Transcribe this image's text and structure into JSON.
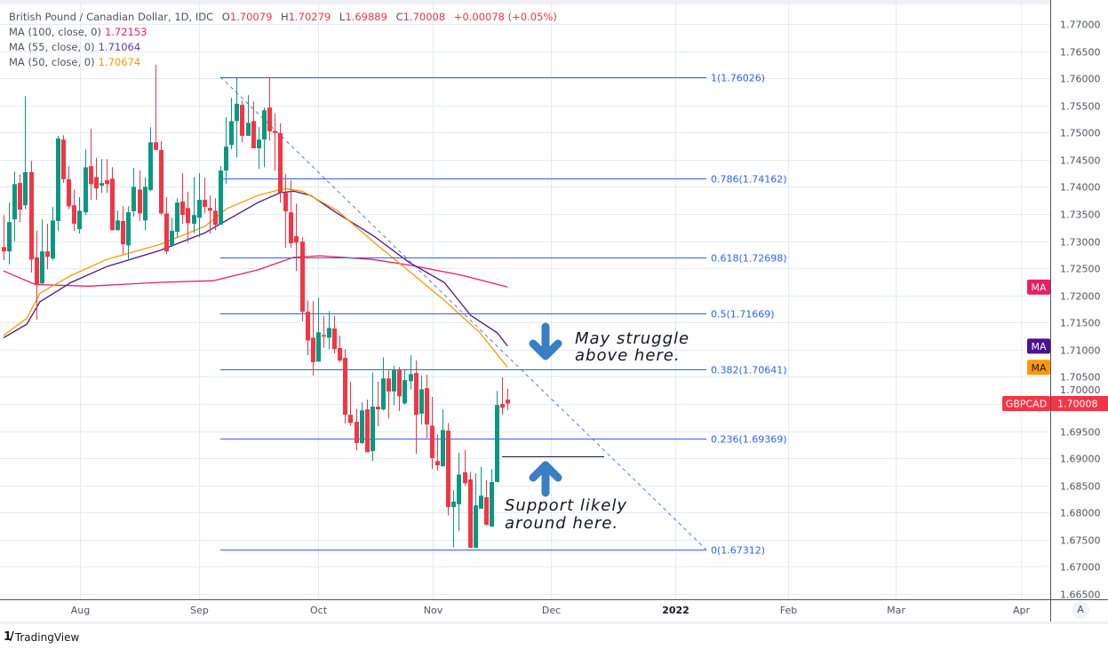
{
  "legend": {
    "symbol": "British Pound / Canadian Dollar, 1D, IDC",
    "o_label": "O",
    "o": "1.70079",
    "h_label": "H",
    "h": "1.70279",
    "l_label": "L",
    "l": "1.69889",
    "c_label": "C",
    "c": "1.70008",
    "change": "+0.00078 (+0.05%)",
    "ma100_label": "MA (100, close, 0)",
    "ma100_value": "1.72153",
    "ma55_label": "MA (55, close, 0)",
    "ma55_value": "1.71064",
    "ma50_label": "MA (50, close, 0)",
    "ma50_value": "1.70674"
  },
  "colors": {
    "up": "#089981",
    "down": "#f23645",
    "ma100": "#e91e63",
    "ma55": "#4a148c",
    "ma50": "#ff9800",
    "fib": "#2962ff",
    "arrow": "#3a7ec6",
    "grid": "#e3ebf3"
  },
  "badges": {
    "ma": "MA",
    "symbol": "GBPCAD",
    "last_price": "1.70008"
  },
  "annotations": {
    "resistance": [
      "May struggle",
      "above here."
    ],
    "support": [
      "Support likely",
      "around here."
    ],
    "support_level": 1.6903
  },
  "footer": {
    "brand": "TradingView",
    "auto_button": "A"
  },
  "chart_data": {
    "type": "candlestick",
    "title": "British Pound / Canadian Dollar, 1D, IDC",
    "ylim": [
      1.665,
      1.77
    ],
    "y_tick_labels": [
      "1.77000",
      "1.76500",
      "1.76000",
      "1.75500",
      "1.75000",
      "1.74500",
      "1.74000",
      "1.73500",
      "1.73000",
      "1.72500",
      "1.72000",
      "1.71500",
      "1.71000",
      "1.70500",
      "1.70000",
      "1.69500",
      "1.69000",
      "1.68500",
      "1.68000",
      "1.67500",
      "1.67000",
      "1.66500"
    ],
    "x_tick_labels": [
      "Aug",
      "Sep",
      "Oct",
      "Nov",
      "Dec",
      "2022",
      "Feb",
      "Mar",
      "Apr"
    ],
    "grid": true,
    "candles_ohlc": [
      [
        1.7289,
        1.7348,
        1.7265,
        1.7281
      ],
      [
        1.7281,
        1.7371,
        1.7257,
        1.7335
      ],
      [
        1.734,
        1.7428,
        1.7299,
        1.7405
      ],
      [
        1.7407,
        1.7423,
        1.7335,
        1.7358
      ],
      [
        1.7366,
        1.7567,
        1.7359,
        1.7427
      ],
      [
        1.7427,
        1.7448,
        1.7242,
        1.7266
      ],
      [
        1.727,
        1.7319,
        1.7155,
        1.7219
      ],
      [
        1.7222,
        1.734,
        1.722,
        1.7281
      ],
      [
        1.7281,
        1.7332,
        1.7248,
        1.7271
      ],
      [
        1.7268,
        1.7363,
        1.7265,
        1.7338
      ],
      [
        1.7337,
        1.7494,
        1.7319,
        1.7489
      ],
      [
        1.7487,
        1.7495,
        1.7407,
        1.7414
      ],
      [
        1.7414,
        1.7438,
        1.7359,
        1.7364
      ],
      [
        1.7366,
        1.7395,
        1.7319,
        1.7332
      ],
      [
        1.7322,
        1.7381,
        1.7314,
        1.7356
      ],
      [
        1.7353,
        1.7469,
        1.7348,
        1.7436
      ],
      [
        1.7438,
        1.7507,
        1.7376,
        1.7405
      ],
      [
        1.7418,
        1.7453,
        1.7376,
        1.7397
      ],
      [
        1.7402,
        1.7451,
        1.7389,
        1.7407
      ],
      [
        1.7412,
        1.7451,
        1.7389,
        1.7405
      ],
      [
        1.7415,
        1.7436,
        1.732,
        1.732
      ],
      [
        1.732,
        1.7356,
        1.732,
        1.7338
      ],
      [
        1.7337,
        1.7364,
        1.7276,
        1.7294
      ],
      [
        1.7292,
        1.7364,
        1.7265,
        1.7353
      ],
      [
        1.7355,
        1.7435,
        1.7345,
        1.74
      ],
      [
        1.7395,
        1.743,
        1.7337,
        1.7351
      ],
      [
        1.7338,
        1.7417,
        1.732,
        1.74
      ],
      [
        1.7394,
        1.751,
        1.7392,
        1.7482
      ],
      [
        1.7482,
        1.7625,
        1.7468,
        1.7468
      ],
      [
        1.7468,
        1.7484,
        1.7348,
        1.7351
      ],
      [
        1.7351,
        1.7381,
        1.7276,
        1.7281
      ],
      [
        1.7292,
        1.7343,
        1.7289,
        1.7319
      ],
      [
        1.7317,
        1.7379,
        1.7307,
        1.7371
      ],
      [
        1.7373,
        1.7425,
        1.7332,
        1.7348
      ],
      [
        1.7361,
        1.7391,
        1.7297,
        1.7333
      ],
      [
        1.7332,
        1.7418,
        1.7314,
        1.7348
      ],
      [
        1.7343,
        1.7425,
        1.7307,
        1.7376
      ],
      [
        1.7376,
        1.7417,
        1.7351,
        1.7363
      ],
      [
        1.7361,
        1.7384,
        1.7314,
        1.7356
      ],
      [
        1.7356,
        1.7379,
        1.732,
        1.733
      ],
      [
        1.733,
        1.7438,
        1.733,
        1.743
      ],
      [
        1.743,
        1.7528,
        1.7405,
        1.7474
      ],
      [
        1.7477,
        1.7564,
        1.7469,
        1.7521
      ],
      [
        1.7521,
        1.7602,
        1.7454,
        1.7553
      ],
      [
        1.7551,
        1.7559,
        1.7482,
        1.7494
      ],
      [
        1.7494,
        1.7569,
        1.7494,
        1.7518
      ],
      [
        1.7521,
        1.7557,
        1.7471,
        1.7471
      ],
      [
        1.7471,
        1.751,
        1.7433,
        1.7487
      ],
      [
        1.7487,
        1.7546,
        1.7436,
        1.7541
      ],
      [
        1.7546,
        1.7602,
        1.7485,
        1.7502
      ],
      [
        1.7503,
        1.7535,
        1.743,
        1.7499
      ],
      [
        1.7499,
        1.7517,
        1.7371,
        1.7389
      ],
      [
        1.7389,
        1.7423,
        1.7288,
        1.7355
      ],
      [
        1.7353,
        1.7412,
        1.7288,
        1.7296
      ],
      [
        1.7309,
        1.7369,
        1.7245,
        1.7297
      ],
      [
        1.7299,
        1.7307,
        1.7152,
        1.717
      ],
      [
        1.717,
        1.7191,
        1.709,
        1.7117
      ],
      [
        1.7122,
        1.7189,
        1.7052,
        1.7077
      ],
      [
        1.7078,
        1.7196,
        1.7078,
        1.7132
      ],
      [
        1.7127,
        1.7162,
        1.7103,
        1.7124
      ],
      [
        1.7122,
        1.7171,
        1.7101,
        1.714
      ],
      [
        1.7139,
        1.7162,
        1.7093,
        1.7101
      ],
      [
        1.7103,
        1.7126,
        1.7077,
        1.708
      ],
      [
        1.7085,
        1.7101,
        1.6964,
        1.698
      ],
      [
        1.698,
        1.7041,
        1.696,
        1.6965
      ],
      [
        1.6967,
        1.6991,
        1.6915,
        1.6928
      ],
      [
        1.6928,
        1.7003,
        1.6926,
        1.6988
      ],
      [
        1.699,
        1.7008,
        1.6911,
        1.6911
      ],
      [
        1.6913,
        1.7058,
        1.6895,
        1.6995
      ],
      [
        1.6995,
        1.7041,
        1.6959,
        1.699
      ],
      [
        1.699,
        1.7086,
        1.6988,
        1.7047
      ],
      [
        1.7047,
        1.7062,
        1.6973,
        1.7023
      ],
      [
        1.7023,
        1.707,
        1.6998,
        1.7062
      ],
      [
        1.7062,
        1.7068,
        1.6987,
        1.7014
      ],
      [
        1.7001,
        1.7063,
        1.6999,
        1.7044
      ],
      [
        1.7042,
        1.709,
        1.7027,
        1.7055
      ],
      [
        1.7057,
        1.708,
        1.6908,
        1.698
      ],
      [
        1.6982,
        1.7052,
        1.6962,
        1.7027
      ],
      [
        1.7029,
        1.7054,
        1.6937,
        1.6962
      ],
      [
        1.696,
        1.7013,
        1.688,
        1.69
      ],
      [
        1.6895,
        1.6944,
        1.6877,
        1.6887
      ],
      [
        1.6885,
        1.699,
        1.6885,
        1.6952
      ],
      [
        1.6951,
        1.6965,
        1.6795,
        1.681
      ],
      [
        1.681,
        1.6841,
        1.6736,
        1.682
      ],
      [
        1.6815,
        1.691,
        1.6766,
        1.687
      ],
      [
        1.6874,
        1.6915,
        1.6849,
        1.6854
      ],
      [
        1.6861,
        1.6875,
        1.6735,
        1.6735
      ],
      [
        1.6735,
        1.6872,
        1.6735,
        1.6813
      ],
      [
        1.6807,
        1.6884,
        1.6807,
        1.6831
      ],
      [
        1.6828,
        1.6859,
        1.6777,
        1.6777
      ],
      [
        1.6774,
        1.688,
        1.6774,
        1.6856
      ],
      [
        1.6856,
        1.7024,
        1.6856,
        1.6998
      ],
      [
        1.7,
        1.7049,
        1.698,
        1.6993
      ],
      [
        1.70079,
        1.70279,
        1.69889,
        1.70008
      ]
    ],
    "moving_averages": [
      {
        "name": "MA (100, close, 0)",
        "points_bar_value": [
          [
            0,
            1.7245
          ],
          [
            5.9,
            1.722
          ],
          [
            15.7,
            1.7217
          ],
          [
            28.9,
            1.7224
          ],
          [
            38.7,
            1.7227
          ],
          [
            46.9,
            1.7247
          ],
          [
            53.5,
            1.727
          ],
          [
            58.4,
            1.7273
          ],
          [
            68.2,
            1.7266
          ],
          [
            74.8,
            1.7256
          ],
          [
            84.6,
            1.7237
          ],
          [
            93,
            1.72153
          ]
        ]
      },
      {
        "name": "MA (55, close, 0)",
        "points_bar_value": [
          [
            0,
            1.7122
          ],
          [
            4.3,
            1.7147
          ],
          [
            6.7,
            1.7188
          ],
          [
            12.5,
            1.7224
          ],
          [
            19,
            1.7253
          ],
          [
            28.9,
            1.7283
          ],
          [
            37.1,
            1.7315
          ],
          [
            42,
            1.7343
          ],
          [
            46.9,
            1.7371
          ],
          [
            51,
            1.7389
          ],
          [
            53.5,
            1.7392
          ],
          [
            56.7,
            1.7384
          ],
          [
            61.6,
            1.7351
          ],
          [
            68.2,
            1.731
          ],
          [
            74.8,
            1.7261
          ],
          [
            81.3,
            1.7224
          ],
          [
            86.2,
            1.7163
          ],
          [
            91.1,
            1.7131
          ],
          [
            93,
            1.71064
          ]
        ]
      },
      {
        "name": "MA (50, close, 0)",
        "points_bar_value": [
          [
            0,
            1.7126
          ],
          [
            4.3,
            1.7158
          ],
          [
            6.7,
            1.7204
          ],
          [
            12.5,
            1.7237
          ],
          [
            19,
            1.7266
          ],
          [
            28.9,
            1.7294
          ],
          [
            37.1,
            1.7327
          ],
          [
            41.2,
            1.736
          ],
          [
            46.9,
            1.7384
          ],
          [
            51.8,
            1.7397
          ],
          [
            55.1,
            1.7392
          ],
          [
            61.6,
            1.7356
          ],
          [
            68.2,
            1.7299
          ],
          [
            74.8,
            1.7245
          ],
          [
            81.3,
            1.7191
          ],
          [
            87.9,
            1.7131
          ],
          [
            93,
            1.70674
          ]
        ]
      }
    ],
    "fibonacci": [
      {
        "label": "1(1.76026)",
        "value": 1.76026
      },
      {
        "label": "0.786(1.74162)",
        "value": 1.74162
      },
      {
        "label": "0.618(1.72698)",
        "value": 1.72698
      },
      {
        "label": "0.5(1.71669)",
        "value": 1.71669
      },
      {
        "label": "0.382(1.70641)",
        "value": 1.70641
      },
      {
        "label": "0.236(1.69369)",
        "value": 1.69369
      },
      {
        "label": "0(1.67312)",
        "value": 1.67312
      }
    ],
    "trendline": {
      "from_value": 1.76026,
      "to_value": 1.67312
    }
  }
}
